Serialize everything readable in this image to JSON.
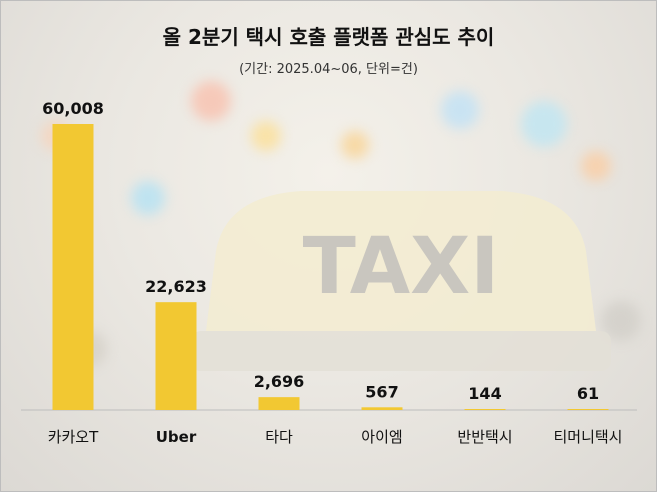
{
  "chart_data": {
    "type": "bar",
    "title": "올 2분기 택시 호출 플랫폼 관심도 추이",
    "subtitle": "(기간: 2025.04~06, 단위=건)",
    "categories": [
      "카카오T",
      "Uber",
      "타다",
      "아이엠",
      "반반택시",
      "티머니택시"
    ],
    "values": [
      60008,
      22623,
      2696,
      567,
      144,
      61
    ],
    "value_labels": [
      "60,008",
      "22,623",
      "2,696",
      "567",
      "144",
      "61"
    ],
    "xlabel": "",
    "ylabel": "",
    "ylim": [
      0,
      60008
    ],
    "grid": false,
    "legend": "none",
    "bar_color": "#f2c832",
    "background_image_text": "TAXI"
  }
}
